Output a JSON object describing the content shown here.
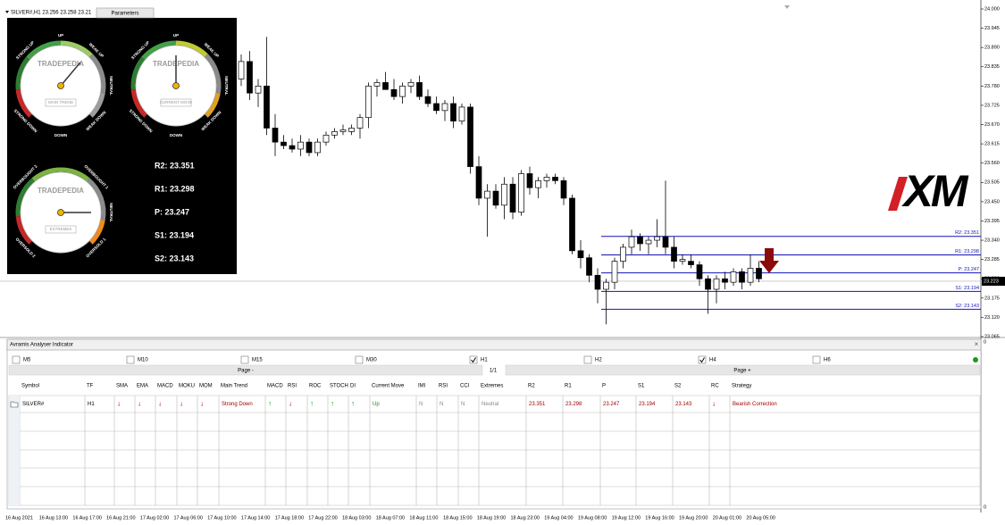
{
  "header": {
    "symbol_info": "SILVER#,H1 23.256 23.258 23.21",
    "parameters_button": "Parameters"
  },
  "logo": "XM",
  "gauges": [
    {
      "brand": "TRADEPEDIA",
      "caption": "MAIN TREND",
      "labels": [
        "STRONG UP",
        "UP",
        "WEAK UP",
        "NEUTRAL",
        "WEAK DOWN",
        "DOWN",
        "STRONG DOWN"
      ]
    },
    {
      "brand": "TRADEPEDIA",
      "caption": "CURRENT MOVE",
      "labels": [
        "STRONG UP",
        "UP",
        "WEAK UP",
        "NEUTRAL",
        "WEAK DOWN",
        "DOWN",
        "STRONG DOWN"
      ]
    },
    {
      "brand": "TRADEPEDIA",
      "caption": "EXTREMES",
      "labels": [
        "OVERBOUGHT 2",
        "OVERBOUGHT 1",
        "NEUTRAL",
        "OVERSOLD 1",
        "OVERSOLD 2"
      ]
    }
  ],
  "chart_data": {
    "type": "candlestick",
    "ylim": [
      23.065,
      24.0
    ],
    "yticks": [
      {
        "value": 24.0,
        "label": "24.000"
      },
      23.945,
      {
        "value": 23.89,
        "label": "23.890"
      },
      23.835,
      {
        "value": 23.78,
        "label": "23.780"
      },
      23.725,
      {
        "value": 23.67,
        "label": "23.670"
      },
      23.615,
      {
        "value": 23.56,
        "label": "23.560"
      },
      23.505,
      {
        "value": 23.45,
        "label": "23.450"
      },
      23.395,
      {
        "value": 23.34,
        "label": "23.340"
      },
      23.285,
      {
        "value": 23.23,
        "label": "23.230"
      },
      23.175,
      {
        "value": 23.12,
        "label": "23.120"
      },
      23.065
    ],
    "x_labels": [
      "16 Aug 2021",
      "16 Aug 13:00",
      "16 Aug 17:00",
      "16 Aug 21:00",
      "17 Aug 02:00",
      "17 Aug 06:00",
      "17 Aug 10:00",
      "17 Aug 14:00",
      "17 Aug 18:00",
      "17 Aug 22:00",
      "18 Aug 03:00",
      "18 Aug 07:00",
      "18 Aug 11:00",
      "18 Aug 15:00",
      "18 Aug 19:00",
      "18 Aug 23:00",
      "19 Aug 04:00",
      "19 Aug 08:00",
      "19 Aug 12:00",
      "19 Aug 16:00",
      "19 Aug 20:00",
      "20 Aug 01:00",
      "20 Aug 05:00"
    ],
    "current_price": 23.223,
    "pivots": [
      {
        "label": "R2: 23.351",
        "value": 23.351
      },
      {
        "label": "R1: 23.298",
        "value": 23.298
      },
      {
        "label": "P: 23.247",
        "value": 23.247
      },
      {
        "label": "S1: 23.194",
        "value": 23.194
      },
      {
        "label": "S2: 23.143",
        "value": 23.143
      }
    ],
    "candles": [
      {
        "open": 23.8,
        "high": 23.87,
        "low": 23.78,
        "close": 23.85
      },
      {
        "open": 23.85,
        "high": 23.88,
        "low": 23.74,
        "close": 23.76
      },
      {
        "open": 23.76,
        "high": 23.8,
        "low": 23.72,
        "close": 23.78
      },
      {
        "open": 23.78,
        "high": 23.92,
        "low": 23.64,
        "close": 23.66
      },
      {
        "open": 23.66,
        "high": 23.7,
        "low": 23.58,
        "close": 23.62
      },
      {
        "open": 23.62,
        "high": 23.64,
        "low": 23.6,
        "close": 23.61
      },
      {
        "open": 23.61,
        "high": 23.63,
        "low": 23.59,
        "close": 23.6
      },
      {
        "open": 23.6,
        "high": 23.64,
        "low": 23.58,
        "close": 23.62
      },
      {
        "open": 23.62,
        "high": 23.63,
        "low": 23.58,
        "close": 23.59
      },
      {
        "open": 23.59,
        "high": 23.63,
        "low": 23.58,
        "close": 23.62
      },
      {
        "open": 23.62,
        "high": 23.65,
        "low": 23.61,
        "close": 23.64
      },
      {
        "open": 23.64,
        "high": 23.66,
        "low": 23.63,
        "close": 23.65
      },
      {
        "open": 23.65,
        "high": 23.67,
        "low": 23.64,
        "close": 23.655
      },
      {
        "open": 23.65,
        "high": 23.67,
        "low": 23.64,
        "close": 23.66
      },
      {
        "open": 23.66,
        "high": 23.7,
        "low": 23.63,
        "close": 23.69
      },
      {
        "open": 23.69,
        "high": 23.79,
        "low": 23.66,
        "close": 23.78
      },
      {
        "open": 23.78,
        "high": 23.8,
        "low": 23.75,
        "close": 23.79
      },
      {
        "open": 23.79,
        "high": 23.82,
        "low": 23.77,
        "close": 23.77
      },
      {
        "open": 23.77,
        "high": 23.8,
        "low": 23.74,
        "close": 23.75
      },
      {
        "open": 23.75,
        "high": 23.79,
        "low": 23.73,
        "close": 23.78
      },
      {
        "open": 23.78,
        "high": 23.8,
        "low": 23.76,
        "close": 23.79
      },
      {
        "open": 23.79,
        "high": 23.81,
        "low": 23.74,
        "close": 23.75
      },
      {
        "open": 23.75,
        "high": 23.77,
        "low": 23.72,
        "close": 23.73
      },
      {
        "open": 23.73,
        "high": 23.75,
        "low": 23.7,
        "close": 23.71
      },
      {
        "open": 23.71,
        "high": 23.74,
        "low": 23.68,
        "close": 23.73
      },
      {
        "open": 23.73,
        "high": 23.75,
        "low": 23.66,
        "close": 23.68
      },
      {
        "open": 23.68,
        "high": 23.73,
        "low": 23.67,
        "close": 23.72
      },
      {
        "open": 23.72,
        "high": 23.73,
        "low": 23.53,
        "close": 23.55
      },
      {
        "open": 23.55,
        "high": 23.58,
        "low": 23.44,
        "close": 23.46
      },
      {
        "open": 23.46,
        "high": 23.5,
        "low": 23.35,
        "close": 23.48
      },
      {
        "open": 23.48,
        "high": 23.5,
        "low": 23.43,
        "close": 23.44
      },
      {
        "open": 23.44,
        "high": 23.52,
        "low": 23.4,
        "close": 23.5
      },
      {
        "open": 23.5,
        "high": 23.52,
        "low": 23.4,
        "close": 23.42
      },
      {
        "open": 23.42,
        "high": 23.54,
        "low": 23.41,
        "close": 23.53
      },
      {
        "open": 23.53,
        "high": 23.55,
        "low": 23.47,
        "close": 23.49
      },
      {
        "open": 23.49,
        "high": 23.52,
        "low": 23.46,
        "close": 23.51
      },
      {
        "open": 23.51,
        "high": 23.53,
        "low": 23.49,
        "close": 23.52
      },
      {
        "open": 23.52,
        "high": 23.53,
        "low": 23.5,
        "close": 23.51
      },
      {
        "open": 23.51,
        "high": 23.52,
        "low": 23.44,
        "close": 23.46
      },
      {
        "open": 23.46,
        "high": 23.47,
        "low": 23.3,
        "close": 23.31
      },
      {
        "open": 23.31,
        "high": 23.34,
        "low": 23.26,
        "close": 23.29
      },
      {
        "open": 23.29,
        "high": 23.3,
        "low": 23.22,
        "close": 23.24
      },
      {
        "open": 23.24,
        "high": 23.26,
        "low": 23.16,
        "close": 23.2
      },
      {
        "open": 23.2,
        "high": 23.23,
        "low": 23.1,
        "close": 23.22
      },
      {
        "open": 23.22,
        "high": 23.29,
        "low": 23.2,
        "close": 23.28
      },
      {
        "open": 23.28,
        "high": 23.33,
        "low": 23.26,
        "close": 23.32
      },
      {
        "open": 23.32,
        "high": 23.37,
        "low": 23.3,
        "close": 23.35
      },
      {
        "open": 23.35,
        "high": 23.36,
        "low": 23.31,
        "close": 23.33
      },
      {
        "open": 23.33,
        "high": 23.35,
        "low": 23.3,
        "close": 23.34
      },
      {
        "open": 23.34,
        "high": 23.4,
        "low": 23.32,
        "close": 23.35
      },
      {
        "open": 23.35,
        "high": 23.51,
        "low": 23.3,
        "close": 23.32
      },
      {
        "open": 23.32,
        "high": 23.35,
        "low": 23.26,
        "close": 23.28
      },
      {
        "open": 23.28,
        "high": 23.3,
        "low": 23.27,
        "close": 23.285
      },
      {
        "open": 23.28,
        "high": 23.3,
        "low": 23.26,
        "close": 23.27
      },
      {
        "open": 23.27,
        "high": 23.28,
        "low": 23.21,
        "close": 23.23
      },
      {
        "open": 23.23,
        "high": 23.24,
        "low": 23.13,
        "close": 23.2
      },
      {
        "open": 23.2,
        "high": 23.24,
        "low": 23.16,
        "close": 23.23
      },
      {
        "open": 23.23,
        "high": 23.25,
        "low": 23.2,
        "close": 23.22
      },
      {
        "open": 23.22,
        "high": 23.26,
        "low": 23.21,
        "close": 23.25
      },
      {
        "open": 23.25,
        "high": 23.26,
        "low": 23.2,
        "close": 23.22
      },
      {
        "open": 23.22,
        "high": 23.3,
        "low": 23.21,
        "close": 23.26
      },
      {
        "open": 23.26,
        "high": 23.28,
        "low": 23.22,
        "close": 23.23
      }
    ]
  },
  "panel": {
    "title": "Avramis Analyser Indicator",
    "timeframes": [
      {
        "label": "M5",
        "checked": false
      },
      {
        "label": "M10",
        "checked": false
      },
      {
        "label": "M15",
        "checked": false
      },
      {
        "label": "M30",
        "checked": false
      },
      {
        "label": "H1",
        "checked": true
      },
      {
        "label": "H2",
        "checked": false
      },
      {
        "label": "H4",
        "checked": true
      },
      {
        "label": "H6",
        "checked": false
      }
    ],
    "pager": {
      "prev": "Page -",
      "page": "1/1",
      "next": "Page +"
    },
    "table": {
      "columns": [
        "Symbol",
        "TF",
        "SMA",
        "EMA",
        "MACD",
        "MOKU",
        "MOM",
        "Main Trend",
        "MACD",
        "RSI",
        "ROC",
        "STOCH",
        "DI",
        "Current Move",
        "IMI",
        "RSI",
        "CCI",
        "Extremes",
        "R2",
        "R1",
        "P",
        "S1",
        "S2",
        "RC",
        "Strategy"
      ],
      "rows": [
        [
          "SILVER#",
          "H1",
          "↓",
          "↓",
          "↓",
          "↓",
          "↓",
          "Strong Down",
          "↑",
          "↓",
          "↑",
          "↑",
          "↑",
          "Up",
          "N",
          "N",
          "N",
          "Neutral",
          23.351,
          23.298,
          23.247,
          23.194,
          23.143,
          "↓",
          "Bearish Correction"
        ]
      ]
    },
    "scale_labels": [
      "0",
      "0"
    ]
  }
}
